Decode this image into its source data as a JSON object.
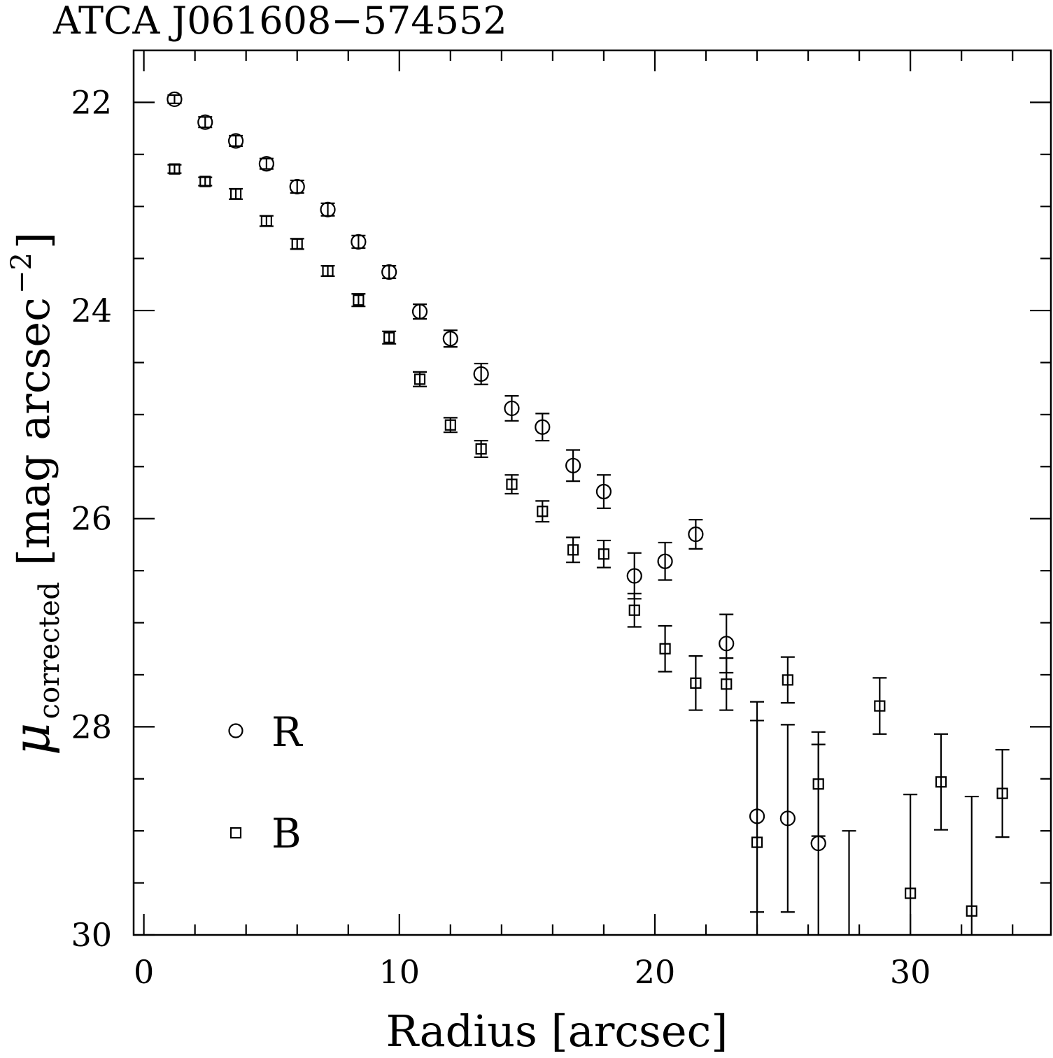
{
  "chart_data": {
    "type": "scatter",
    "title": "ATCA J061608−574552",
    "xlabel": "Radius [arcsec]",
    "ylabel": {
      "symbol": "μ",
      "subscript": "corrected",
      "units": "[mag arcsec",
      "units_exp": "−2",
      "units_close": "]"
    },
    "xlim": [
      -0.4,
      35.5
    ],
    "ylim": [
      30,
      21.5
    ],
    "y_inverted": true,
    "x_ticks": [
      0,
      10,
      20,
      30
    ],
    "x_tick_labels": [
      "0",
      "10",
      "20",
      "30"
    ],
    "x_minor_step": 2,
    "y_ticks": [
      22,
      24,
      26,
      28,
      30
    ],
    "y_tick_labels": [
      "22",
      "24",
      "26",
      "28",
      "30"
    ],
    "y_minor_step": 0.5,
    "grid": false,
    "legend_position": "bottom-left",
    "series": [
      {
        "name": "R",
        "marker": "circle",
        "x": [
          1.2,
          2.4,
          3.6,
          4.8,
          6.0,
          7.2,
          8.4,
          9.6,
          10.8,
          12.0,
          13.2,
          14.4,
          15.6,
          16.8,
          18.0,
          19.2,
          20.4,
          21.6,
          22.8,
          24.0,
          25.2,
          26.4
        ],
        "y": [
          21.97,
          22.19,
          22.37,
          22.59,
          22.81,
          23.03,
          23.34,
          23.63,
          24.01,
          24.27,
          24.61,
          24.94,
          25.12,
          25.49,
          25.74,
          26.55,
          26.41,
          26.15,
          27.2,
          28.86,
          28.88,
          29.12
        ],
        "yerr": [
          0.04,
          0.05,
          0.05,
          0.05,
          0.06,
          0.06,
          0.06,
          0.06,
          0.07,
          0.08,
          0.1,
          0.12,
          0.13,
          0.15,
          0.16,
          0.22,
          0.18,
          0.14,
          0.28,
          0.92,
          0.9,
          0.95
        ]
      },
      {
        "name": "B",
        "marker": "square",
        "x": [
          1.2,
          2.4,
          3.6,
          4.8,
          6.0,
          7.2,
          8.4,
          9.6,
          10.8,
          12.0,
          13.2,
          14.4,
          15.6,
          16.8,
          18.0,
          19.2,
          20.4,
          21.6,
          22.8,
          24.0,
          25.2,
          26.4,
          27.6,
          28.8,
          30.0,
          31.2,
          32.4,
          33.6
        ],
        "y": [
          22.64,
          22.76,
          22.88,
          23.14,
          23.36,
          23.62,
          23.9,
          24.26,
          24.66,
          25.1,
          25.33,
          25.67,
          25.93,
          26.3,
          26.34,
          26.88,
          27.25,
          27.58,
          27.59,
          29.11,
          27.55,
          28.55,
          30.5,
          27.8,
          29.6,
          28.53,
          29.77,
          28.64
        ],
        "yerr": [
          0.04,
          0.04,
          0.05,
          0.05,
          0.05,
          0.05,
          0.06,
          0.06,
          0.07,
          0.07,
          0.08,
          0.09,
          0.1,
          0.12,
          0.13,
          0.16,
          0.22,
          0.26,
          0.25,
          1.35,
          0.22,
          0.5,
          1.5,
          0.27,
          0.95,
          0.46,
          1.1,
          0.42
        ]
      }
    ]
  }
}
